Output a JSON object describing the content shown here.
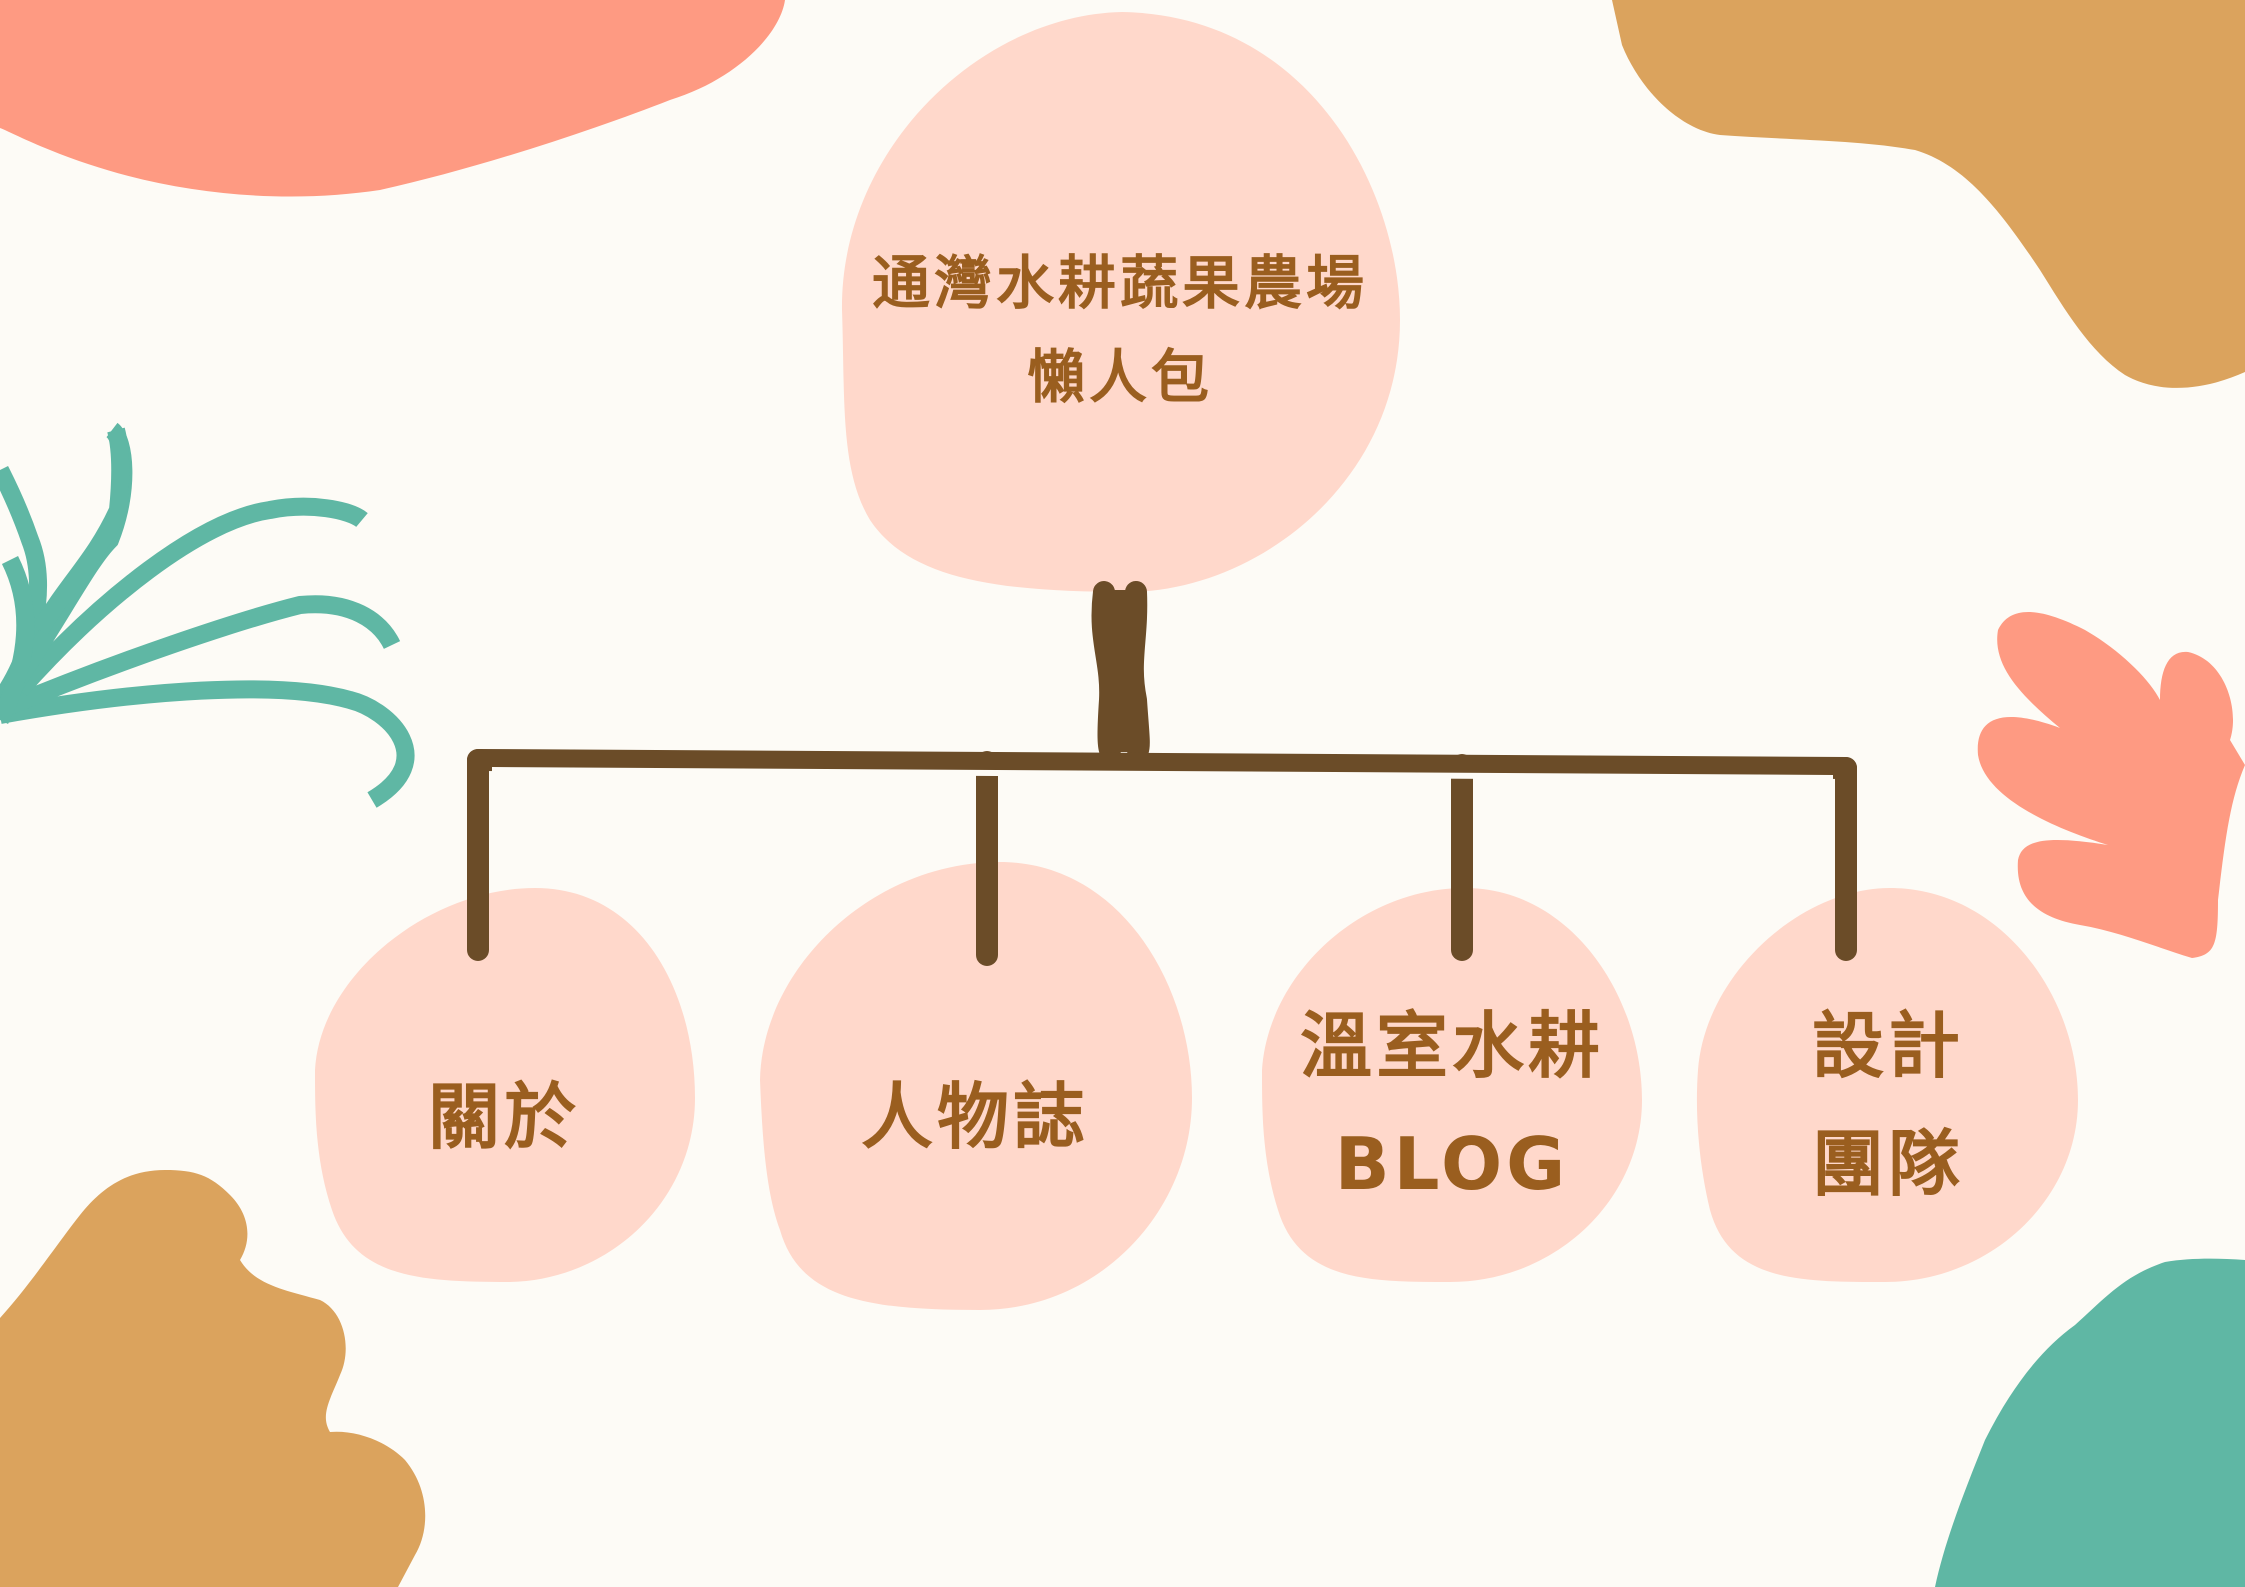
{
  "root": {
    "line1": "通灣水耕蔬果農場",
    "line2": "懶人包"
  },
  "nodes": [
    {
      "line1": "關於"
    },
    {
      "line1": "人物誌"
    },
    {
      "line1": "溫室水耕",
      "line2": "BLOG"
    },
    {
      "line1": "設計",
      "line2": "團隊"
    }
  ],
  "colors": {
    "bubble": "#ffd8cb",
    "connector": "#6b4c28",
    "text": "#9a5e1f",
    "coral": "#fe9a82",
    "ochre": "#dba35d",
    "teal": "#5fb7a4",
    "background": "#fdfbf6"
  }
}
